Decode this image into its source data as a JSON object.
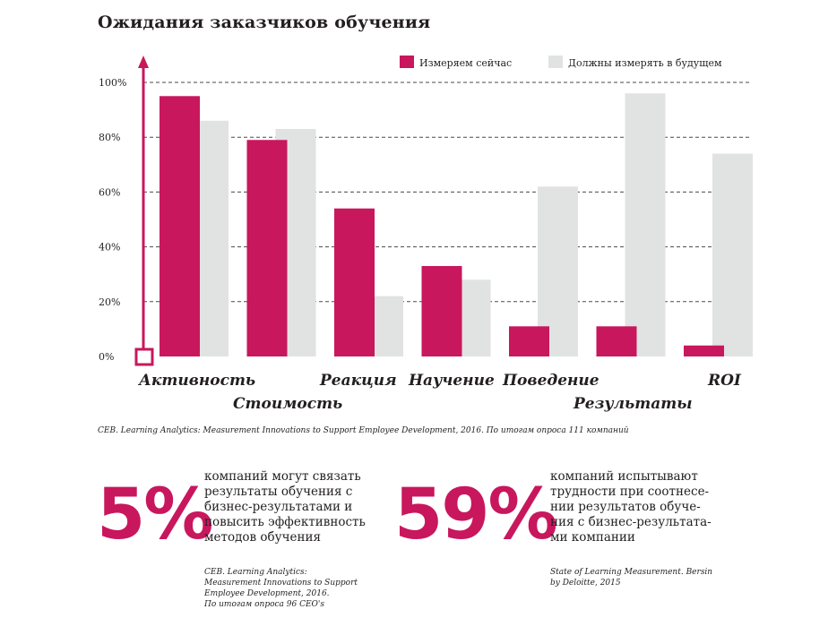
{
  "chart_data": {
    "type": "bar",
    "title": "Ожидания заказчиков обучения",
    "categories": [
      "Активность",
      "Стоимость",
      "Реакция",
      "Научение",
      "Поведение",
      "Результаты",
      "ROI"
    ],
    "series": [
      {
        "name": "Измеряем сейчас",
        "color": "#c8175d",
        "values": [
          95,
          79,
          54,
          33,
          11,
          11,
          4
        ]
      },
      {
        "name": "Должны измерять в будущем",
        "color": "#e1e2e2",
        "values": [
          86,
          83,
          22,
          28,
          62,
          96,
          74
        ]
      }
    ],
    "ylim": [
      0,
      100
    ],
    "yticks": [
      0,
      20,
      40,
      60,
      80,
      100
    ],
    "ytick_labels": [
      "0%",
      "20%",
      "40%",
      "60%",
      "80%",
      "100%"
    ],
    "grid": "dashed horizontal at 20% intervals",
    "legend": "top-right",
    "source": "CEB. Learning Analytics: Measurement Innovations to Support Employee Development, 2016. По итогам опроса 111 компаний"
  },
  "stats": [
    {
      "value": "5%",
      "text": "компаний могут связать\nрезультаты обучения с\nбизнес-результатами и\nповысить эффективность\nметодов обучения",
      "source": "CEB. Learning Analytics:\nMeasurement Innovations to Support\nEmployee Development, 2016.\nПо итогам опроса 96 CEO's"
    },
    {
      "value": "59%",
      "text": "компаний испытывают\nтрудности при соотнесе-\nнии результатов обуче-\nния с бизнес-результата-\nми компании",
      "source": "State of Learning Measurement. Bersin\nby Deloitte, 2015"
    }
  ],
  "colors": {
    "accent": "#c8175d",
    "future": "#e1e2e2",
    "text": "#231f20"
  }
}
